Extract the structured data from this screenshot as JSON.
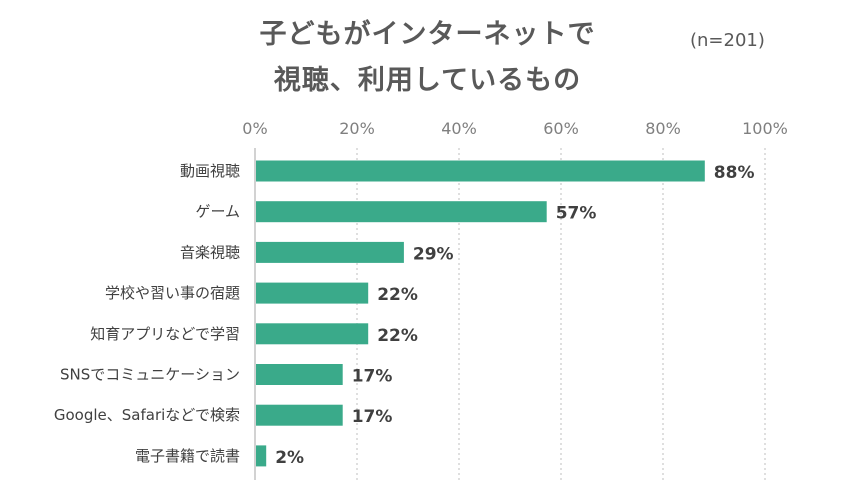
{
  "chart_data": {
    "type": "bar",
    "orientation": "horizontal",
    "title_line1": "子どもがインターネットで",
    "title_line2": "視聴、利用しているもの",
    "note": "(n=201)",
    "xlim": [
      0,
      100
    ],
    "ticks": [
      "0%",
      "20%",
      "40%",
      "60%",
      "80%",
      "100%"
    ],
    "tick_values": [
      0,
      20,
      40,
      60,
      80,
      100
    ],
    "grid": true,
    "bar_color": "#3aaa8a",
    "categories": [
      "動画視聴",
      "ゲーム",
      "音楽視聴",
      "学校や習い事の宿題",
      "知育アプリなどで学習",
      "SNSでコミュニケーション",
      "Google、Safariなどで検索",
      "電子書籍で読書"
    ],
    "values": [
      88,
      57,
      29,
      22,
      22,
      17,
      17,
      2
    ],
    "value_labels": [
      "88%",
      "57%",
      "29%",
      "22%",
      "22%",
      "17%",
      "17%",
      "2%"
    ]
  }
}
